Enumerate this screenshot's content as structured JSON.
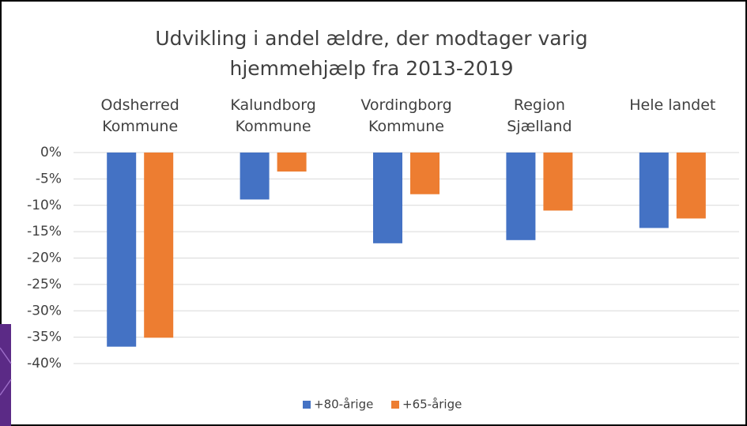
{
  "chart_data": {
    "type": "bar",
    "title": "Udvikling i andel ældre, der modtager varig hjemmehjælp fra 2013-2019",
    "categories": [
      "Odsherred Kommune",
      "Kalundborg Kommune",
      "Vordingborg Kommune",
      "Region Sjælland",
      "Hele landet"
    ],
    "series": [
      {
        "name": "+80-årige",
        "color": "#4472c4",
        "values": [
          -36.8,
          -8.9,
          -17.2,
          -16.6,
          -14.3
        ]
      },
      {
        "name": "+65-årige",
        "color": "#ed7d31",
        "values": [
          -35.1,
          -3.6,
          -7.9,
          -11.0,
          -12.5
        ]
      }
    ],
    "ylim": [
      -40,
      0
    ],
    "yticks": [
      {
        "value": 0,
        "label": "0%"
      },
      {
        "value": -5,
        "label": "-5%"
      },
      {
        "value": -10,
        "label": "-10%"
      },
      {
        "value": -15,
        "label": "-15%"
      },
      {
        "value": -20,
        "label": "-20%"
      },
      {
        "value": -25,
        "label": "-25%"
      },
      {
        "value": -30,
        "label": "-30%"
      },
      {
        "value": -35,
        "label": "-35%"
      },
      {
        "value": -40,
        "label": "-40%"
      }
    ],
    "grid": true,
    "legend": "bottom"
  }
}
